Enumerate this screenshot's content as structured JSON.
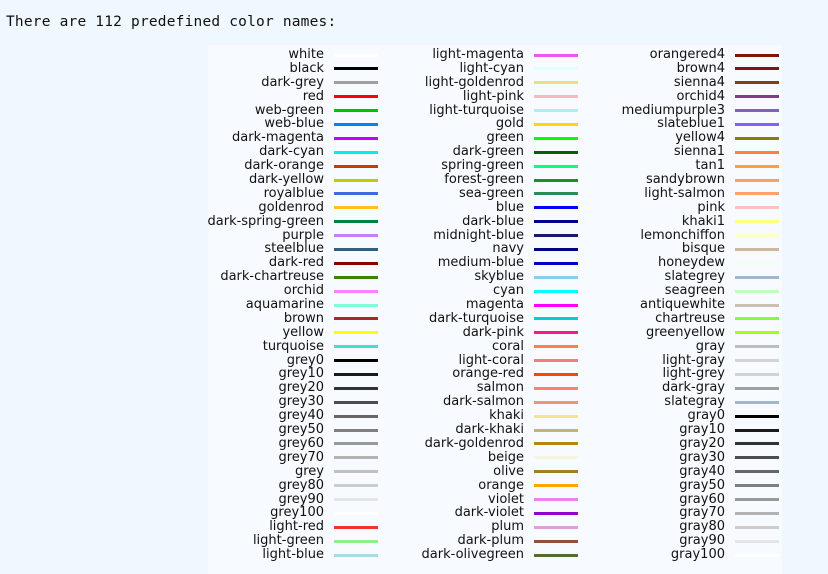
{
  "heading": "There are 112 predefined color names:",
  "columns": [
    [
      {
        "name": "white",
        "hex": "#ffffff"
      },
      {
        "name": "black",
        "hex": "#000000"
      },
      {
        "name": "dark-grey",
        "hex": "#a0a0a0"
      },
      {
        "name": "red",
        "hex": "#ff0000"
      },
      {
        "name": "web-green",
        "hex": "#00c000"
      },
      {
        "name": "web-blue",
        "hex": "#0080ff"
      },
      {
        "name": "dark-magenta",
        "hex": "#c000ff"
      },
      {
        "name": "dark-cyan",
        "hex": "#00eeee"
      },
      {
        "name": "dark-orange",
        "hex": "#c04000"
      },
      {
        "name": "dark-yellow",
        "hex": "#c8c800"
      },
      {
        "name": "royalblue",
        "hex": "#4169e1"
      },
      {
        "name": "goldenrod",
        "hex": "#ffc020"
      },
      {
        "name": "dark-spring-green",
        "hex": "#008040"
      },
      {
        "name": "purple",
        "hex": "#c080ff"
      },
      {
        "name": "steelblue",
        "hex": "#306080"
      },
      {
        "name": "dark-red",
        "hex": "#8b0000"
      },
      {
        "name": "dark-chartreuse",
        "hex": "#408000"
      },
      {
        "name": "orchid",
        "hex": "#ff80ff"
      },
      {
        "name": "aquamarine",
        "hex": "#7fffd4"
      },
      {
        "name": "brown",
        "hex": "#a52a2a"
      },
      {
        "name": "yellow",
        "hex": "#ffff00"
      },
      {
        "name": "turquoise",
        "hex": "#40e0d0"
      },
      {
        "name": "grey0",
        "hex": "#000000"
      },
      {
        "name": "grey10",
        "hex": "#1a1a1a"
      },
      {
        "name": "grey20",
        "hex": "#333333"
      },
      {
        "name": "grey30",
        "hex": "#4d4d4d"
      },
      {
        "name": "grey40",
        "hex": "#666666"
      },
      {
        "name": "grey50",
        "hex": "#7f7f7f"
      },
      {
        "name": "grey60",
        "hex": "#999999"
      },
      {
        "name": "grey70",
        "hex": "#b3b3b3"
      },
      {
        "name": "grey",
        "hex": "#c0c0c0"
      },
      {
        "name": "grey80",
        "hex": "#cccccc"
      },
      {
        "name": "grey90",
        "hex": "#e5e5e5"
      },
      {
        "name": "grey100",
        "hex": "#ffffff"
      },
      {
        "name": "light-red",
        "hex": "#f03232"
      },
      {
        "name": "light-green",
        "hex": "#90ee90"
      },
      {
        "name": "light-blue",
        "hex": "#add8e6"
      }
    ],
    [
      {
        "name": "light-magenta",
        "hex": "#f055f0"
      },
      {
        "name": "light-cyan",
        "hex": "#e0ffff"
      },
      {
        "name": "light-goldenrod",
        "hex": "#eedd82"
      },
      {
        "name": "light-pink",
        "hex": "#ffb6c1"
      },
      {
        "name": "light-turquoise",
        "hex": "#afeeee"
      },
      {
        "name": "gold",
        "hex": "#ffd700"
      },
      {
        "name": "green",
        "hex": "#00ff00"
      },
      {
        "name": "dark-green",
        "hex": "#006400"
      },
      {
        "name": "spring-green",
        "hex": "#00ff7f"
      },
      {
        "name": "forest-green",
        "hex": "#228b22"
      },
      {
        "name": "sea-green",
        "hex": "#2e8b57"
      },
      {
        "name": "blue",
        "hex": "#0000ff"
      },
      {
        "name": "dark-blue",
        "hex": "#00008b"
      },
      {
        "name": "midnight-blue",
        "hex": "#191970"
      },
      {
        "name": "navy",
        "hex": "#000080"
      },
      {
        "name": "medium-blue",
        "hex": "#0000cd"
      },
      {
        "name": "skyblue",
        "hex": "#87ceeb"
      },
      {
        "name": "cyan",
        "hex": "#00ffff"
      },
      {
        "name": "magenta",
        "hex": "#ff00ff"
      },
      {
        "name": "dark-turquoise",
        "hex": "#00ced1"
      },
      {
        "name": "dark-pink",
        "hex": "#ff1493"
      },
      {
        "name": "coral",
        "hex": "#ff7f50"
      },
      {
        "name": "light-coral",
        "hex": "#f08080"
      },
      {
        "name": "orange-red",
        "hex": "#ff4500"
      },
      {
        "name": "salmon",
        "hex": "#fa8072"
      },
      {
        "name": "dark-salmon",
        "hex": "#e9967a"
      },
      {
        "name": "khaki",
        "hex": "#f0e68c"
      },
      {
        "name": "dark-khaki",
        "hex": "#bdb76b"
      },
      {
        "name": "dark-goldenrod",
        "hex": "#b8860b"
      },
      {
        "name": "beige",
        "hex": "#f5f5dc"
      },
      {
        "name": "olive",
        "hex": "#a08020"
      },
      {
        "name": "orange",
        "hex": "#ffa500"
      },
      {
        "name": "violet",
        "hex": "#ee82ee"
      },
      {
        "name": "dark-violet",
        "hex": "#9400d3"
      },
      {
        "name": "plum",
        "hex": "#dda0dd"
      },
      {
        "name": "dark-plum",
        "hex": "#905040"
      },
      {
        "name": "dark-olivegreen",
        "hex": "#556b2f"
      }
    ],
    [
      {
        "name": "orangered4",
        "hex": "#801400"
      },
      {
        "name": "brown4",
        "hex": "#801414"
      },
      {
        "name": "sienna4",
        "hex": "#804014"
      },
      {
        "name": "orchid4",
        "hex": "#804080"
      },
      {
        "name": "mediumpurple3",
        "hex": "#8060c0"
      },
      {
        "name": "slateblue1",
        "hex": "#8060ff"
      },
      {
        "name": "yellow4",
        "hex": "#808000"
      },
      {
        "name": "sienna1",
        "hex": "#ff8040"
      },
      {
        "name": "tan1",
        "hex": "#ffa040"
      },
      {
        "name": "sandybrown",
        "hex": "#ffa060"
      },
      {
        "name": "light-salmon",
        "hex": "#ffa070"
      },
      {
        "name": "pink",
        "hex": "#ffc0c0"
      },
      {
        "name": "khaki1",
        "hex": "#ffff80"
      },
      {
        "name": "lemonchiffon",
        "hex": "#ffffc0"
      },
      {
        "name": "bisque",
        "hex": "#cdb79e"
      },
      {
        "name": "honeydew",
        "hex": "#f0fff0"
      },
      {
        "name": "slategrey",
        "hex": "#a0b6cd"
      },
      {
        "name": "seagreen",
        "hex": "#c1ffc1"
      },
      {
        "name": "antiquewhite",
        "hex": "#cdc0b0"
      },
      {
        "name": "chartreuse",
        "hex": "#7cff40"
      },
      {
        "name": "greenyellow",
        "hex": "#a0ff20"
      },
      {
        "name": "gray",
        "hex": "#bebebe"
      },
      {
        "name": "light-gray",
        "hex": "#d3d3d3"
      },
      {
        "name": "light-grey",
        "hex": "#d3d3d3"
      },
      {
        "name": "dark-gray",
        "hex": "#a0a0a0"
      },
      {
        "name": "slategray",
        "hex": "#a0b6cd"
      },
      {
        "name": "gray0",
        "hex": "#000000"
      },
      {
        "name": "gray10",
        "hex": "#1a1a1a"
      },
      {
        "name": "gray20",
        "hex": "#333333"
      },
      {
        "name": "gray30",
        "hex": "#4d4d4d"
      },
      {
        "name": "gray40",
        "hex": "#666666"
      },
      {
        "name": "gray50",
        "hex": "#7f7f7f"
      },
      {
        "name": "gray60",
        "hex": "#999999"
      },
      {
        "name": "gray70",
        "hex": "#b3b3b3"
      },
      {
        "name": "gray80",
        "hex": "#cccccc"
      },
      {
        "name": "gray90",
        "hex": "#e5e5e5"
      },
      {
        "name": "gray100",
        "hex": "#ffffff"
      }
    ]
  ]
}
